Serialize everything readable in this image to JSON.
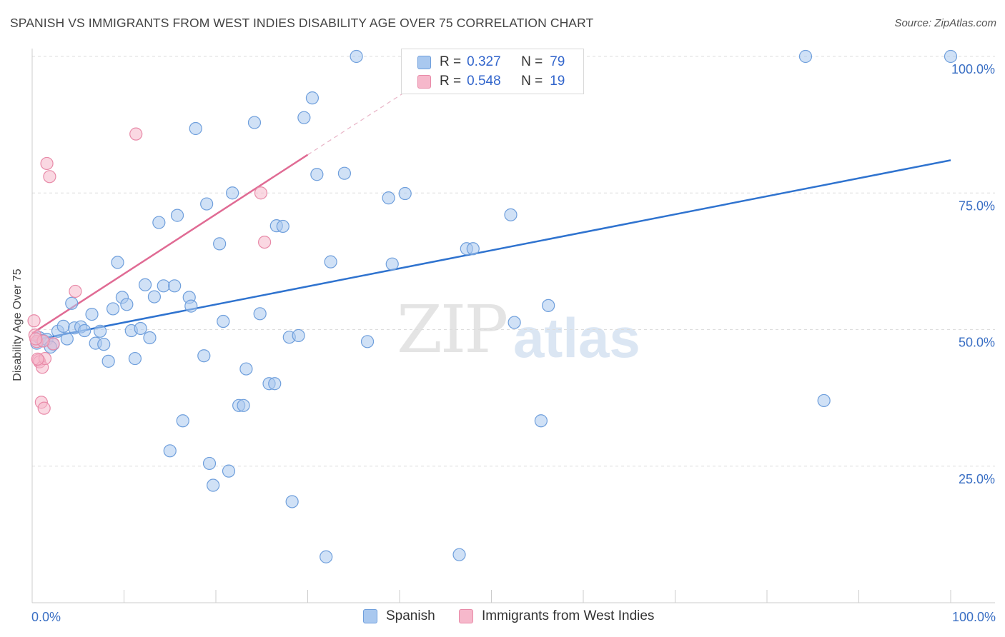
{
  "title": "SPANISH VS IMMIGRANTS FROM WEST INDIES DISABILITY AGE OVER 75 CORRELATION CHART",
  "source": "Source: ZipAtlas.com",
  "watermark": {
    "zip": "ZIP",
    "atlas": "atlas"
  },
  "legend_stats": {
    "r_label": "R =",
    "n_label": "N =",
    "spanish": {
      "r": "0.327",
      "n": "79"
    },
    "west_indies": {
      "r": "0.548",
      "n": "19"
    }
  },
  "colors": {
    "spanish_fill": "#a9c8ef",
    "spanish_stroke": "#6f9fdc",
    "spanish_line": "#2f73cf",
    "wi_fill": "#f6b8cb",
    "wi_stroke": "#e88aa8",
    "wi_line": "#e06b94",
    "axis_text": "#3a6fc4",
    "grid": "#dddddd"
  },
  "chart_data": {
    "type": "scatter",
    "title": "SPANISH VS IMMIGRANTS FROM WEST INDIES DISABILITY AGE OVER 75 CORRELATION CHART",
    "xlabel": "",
    "ylabel": "Disability Age Over 75",
    "xlim": [
      0,
      100
    ],
    "ylim": [
      0,
      100
    ],
    "x_tick_labels": [
      "0.0%",
      "100.0%"
    ],
    "y_ticks": [
      25,
      50,
      75,
      100
    ],
    "y_tick_labels": [
      "25.0%",
      "50.0%",
      "75.0%",
      "100.0%"
    ],
    "grid": true,
    "legend": "bottom",
    "series": [
      {
        "name": "Spanish",
        "points": [
          [
            0.5,
            47.5
          ],
          [
            0.8,
            48.5
          ],
          [
            1.2,
            48.0
          ],
          [
            1.6,
            48.2
          ],
          [
            2.3,
            47.3
          ],
          [
            2.8,
            49.7
          ],
          [
            3.4,
            50.6
          ],
          [
            3.8,
            48.3
          ],
          [
            4.3,
            54.8
          ],
          [
            4.6,
            50.3
          ],
          [
            5.3,
            50.5
          ],
          [
            5.7,
            49.8
          ],
          [
            6.5,
            52.8
          ],
          [
            6.9,
            47.5
          ],
          [
            7.4,
            49.7
          ],
          [
            7.8,
            47.3
          ],
          [
            8.3,
            44.2
          ],
          [
            8.8,
            53.8
          ],
          [
            9.3,
            62.3
          ],
          [
            9.8,
            55.9
          ],
          [
            10.3,
            54.6
          ],
          [
            10.8,
            49.8
          ],
          [
            11.2,
            44.7
          ],
          [
            11.8,
            50.2
          ],
          [
            12.3,
            58.2
          ],
          [
            12.8,
            48.5
          ],
          [
            13.3,
            56.0
          ],
          [
            13.8,
            69.6
          ],
          [
            14.3,
            58.0
          ],
          [
            15.0,
            27.8
          ],
          [
            15.5,
            58.0
          ],
          [
            15.8,
            70.9
          ],
          [
            16.4,
            33.3
          ],
          [
            17.1,
            55.9
          ],
          [
            17.3,
            54.3
          ],
          [
            17.8,
            86.8
          ],
          [
            18.7,
            45.2
          ],
          [
            19.0,
            73.0
          ],
          [
            19.3,
            25.5
          ],
          [
            19.7,
            21.5
          ],
          [
            20.4,
            65.7
          ],
          [
            20.8,
            51.5
          ],
          [
            21.4,
            24.1
          ],
          [
            21.8,
            75.0
          ],
          [
            22.5,
            36.1
          ],
          [
            23.0,
            36.1
          ],
          [
            23.3,
            42.8
          ],
          [
            24.2,
            87.9
          ],
          [
            24.8,
            52.9
          ],
          [
            25.8,
            40.1
          ],
          [
            26.4,
            40.1
          ],
          [
            26.6,
            69.0
          ],
          [
            27.3,
            68.9
          ],
          [
            28.0,
            48.6
          ],
          [
            28.3,
            18.5
          ],
          [
            29.0,
            48.9
          ],
          [
            29.6,
            88.8
          ],
          [
            30.5,
            92.4
          ],
          [
            31.0,
            78.4
          ],
          [
            32.0,
            8.4
          ],
          [
            32.5,
            62.4
          ],
          [
            34.0,
            78.6
          ],
          [
            35.3,
            100.0
          ],
          [
            36.5,
            47.8
          ],
          [
            38.8,
            74.1
          ],
          [
            39.2,
            62.0
          ],
          [
            40.6,
            74.9
          ],
          [
            42.2,
            100.0
          ],
          [
            46.5,
            8.8
          ],
          [
            47.3,
            64.8
          ],
          [
            48.0,
            64.8
          ],
          [
            52.1,
            71.0
          ],
          [
            52.5,
            51.3
          ],
          [
            55.4,
            33.3
          ],
          [
            56.2,
            54.4
          ],
          [
            84.2,
            100.0
          ],
          [
            86.2,
            37.0
          ],
          [
            100.0,
            100.0
          ],
          [
            2.0,
            46.8
          ]
        ],
        "trend": {
          "x": [
            0,
            100
          ],
          "y": [
            48.0,
            81.0
          ]
        }
      },
      {
        "name": "Immigrants from West Indies",
        "points": [
          [
            0.2,
            51.6
          ],
          [
            0.3,
            49.0
          ],
          [
            0.5,
            47.8
          ],
          [
            0.7,
            44.4
          ],
          [
            0.8,
            44.1
          ],
          [
            1.0,
            36.7
          ],
          [
            1.1,
            43.1
          ],
          [
            1.3,
            35.6
          ],
          [
            1.4,
            44.7
          ],
          [
            1.6,
            80.4
          ],
          [
            1.9,
            78.0
          ],
          [
            2.3,
            47.4
          ],
          [
            4.7,
            57.0
          ],
          [
            11.3,
            85.8
          ],
          [
            24.9,
            75.0
          ],
          [
            25.3,
            66.0
          ],
          [
            0.6,
            44.6
          ],
          [
            1.2,
            47.9
          ],
          [
            0.4,
            48.3
          ]
        ],
        "trend": {
          "x": [
            0,
            30
          ],
          "y": [
            49.3,
            82.0
          ]
        },
        "trend_extension": {
          "x": [
            30,
            42
          ],
          "y": [
            82.0,
            95.0
          ]
        }
      }
    ]
  }
}
